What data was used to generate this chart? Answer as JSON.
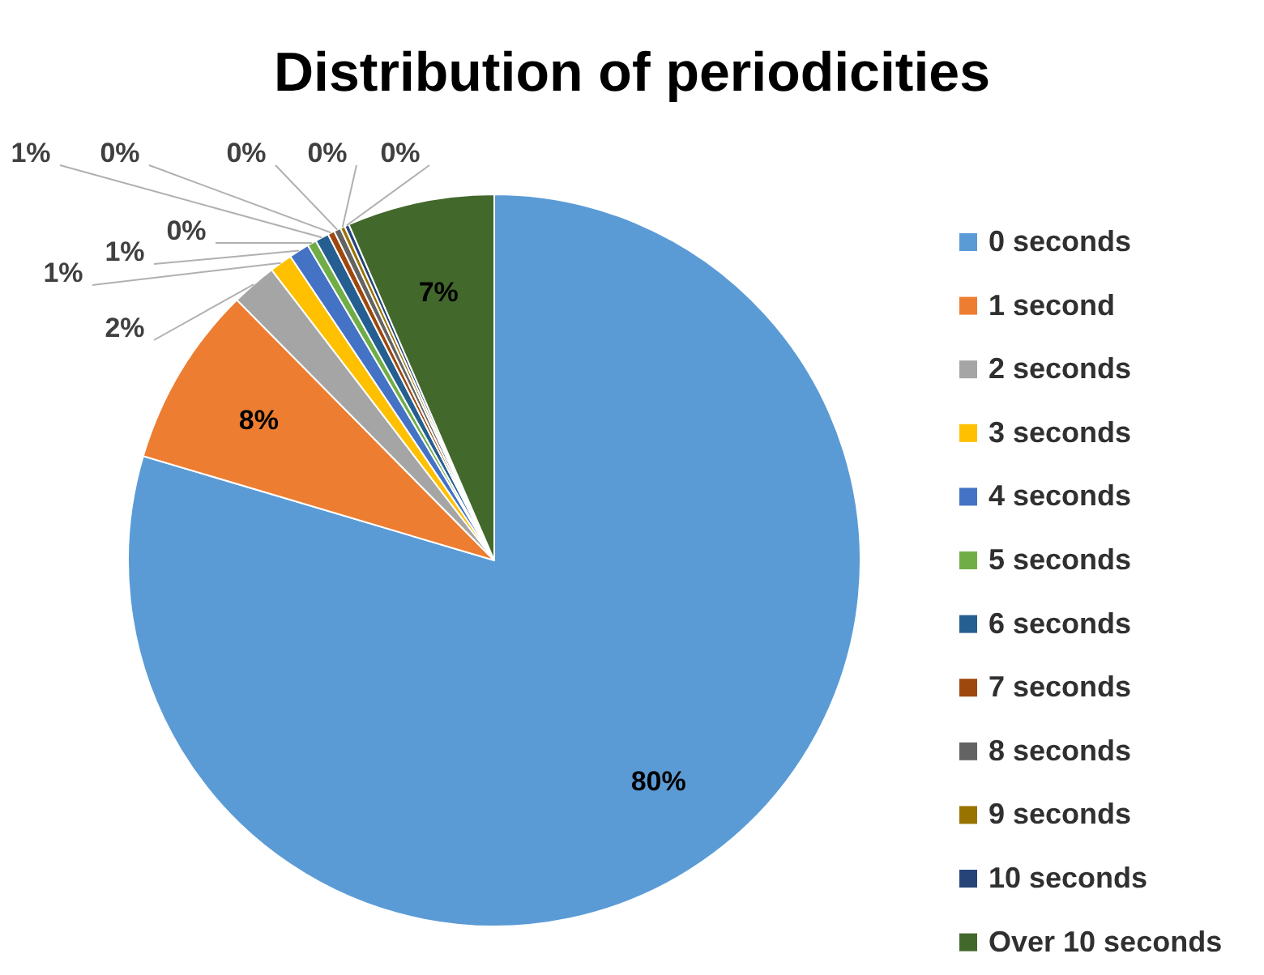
{
  "chart_data": {
    "type": "pie",
    "title": "Distribution of periodicities",
    "categories": [
      "0 seconds",
      "1 second",
      "2 seconds",
      "3 seconds",
      "4 seconds",
      "5 seconds",
      "6 seconds",
      "7 seconds",
      "8 seconds",
      "9 seconds",
      "10 seconds",
      "Over 10 seconds"
    ],
    "values": [
      79.6,
      8,
      2,
      1,
      0.9,
      0.4,
      0.6,
      0.3,
      0.3,
      0.2,
      0.2,
      6.5
    ],
    "value_labels": [
      "80%",
      "8%",
      "2%",
      "1%",
      "1%",
      "0%",
      "1%",
      "0%",
      "0%",
      "0%",
      "0%",
      "7%"
    ],
    "colors": [
      "#5b9bd5",
      "#ed7d31",
      "#a5a5a5",
      "#ffc000",
      "#4472c4",
      "#70ad47",
      "#255e91",
      "#9e480e",
      "#636363",
      "#997300",
      "#264478",
      "#43682b"
    ],
    "legend": "right"
  }
}
